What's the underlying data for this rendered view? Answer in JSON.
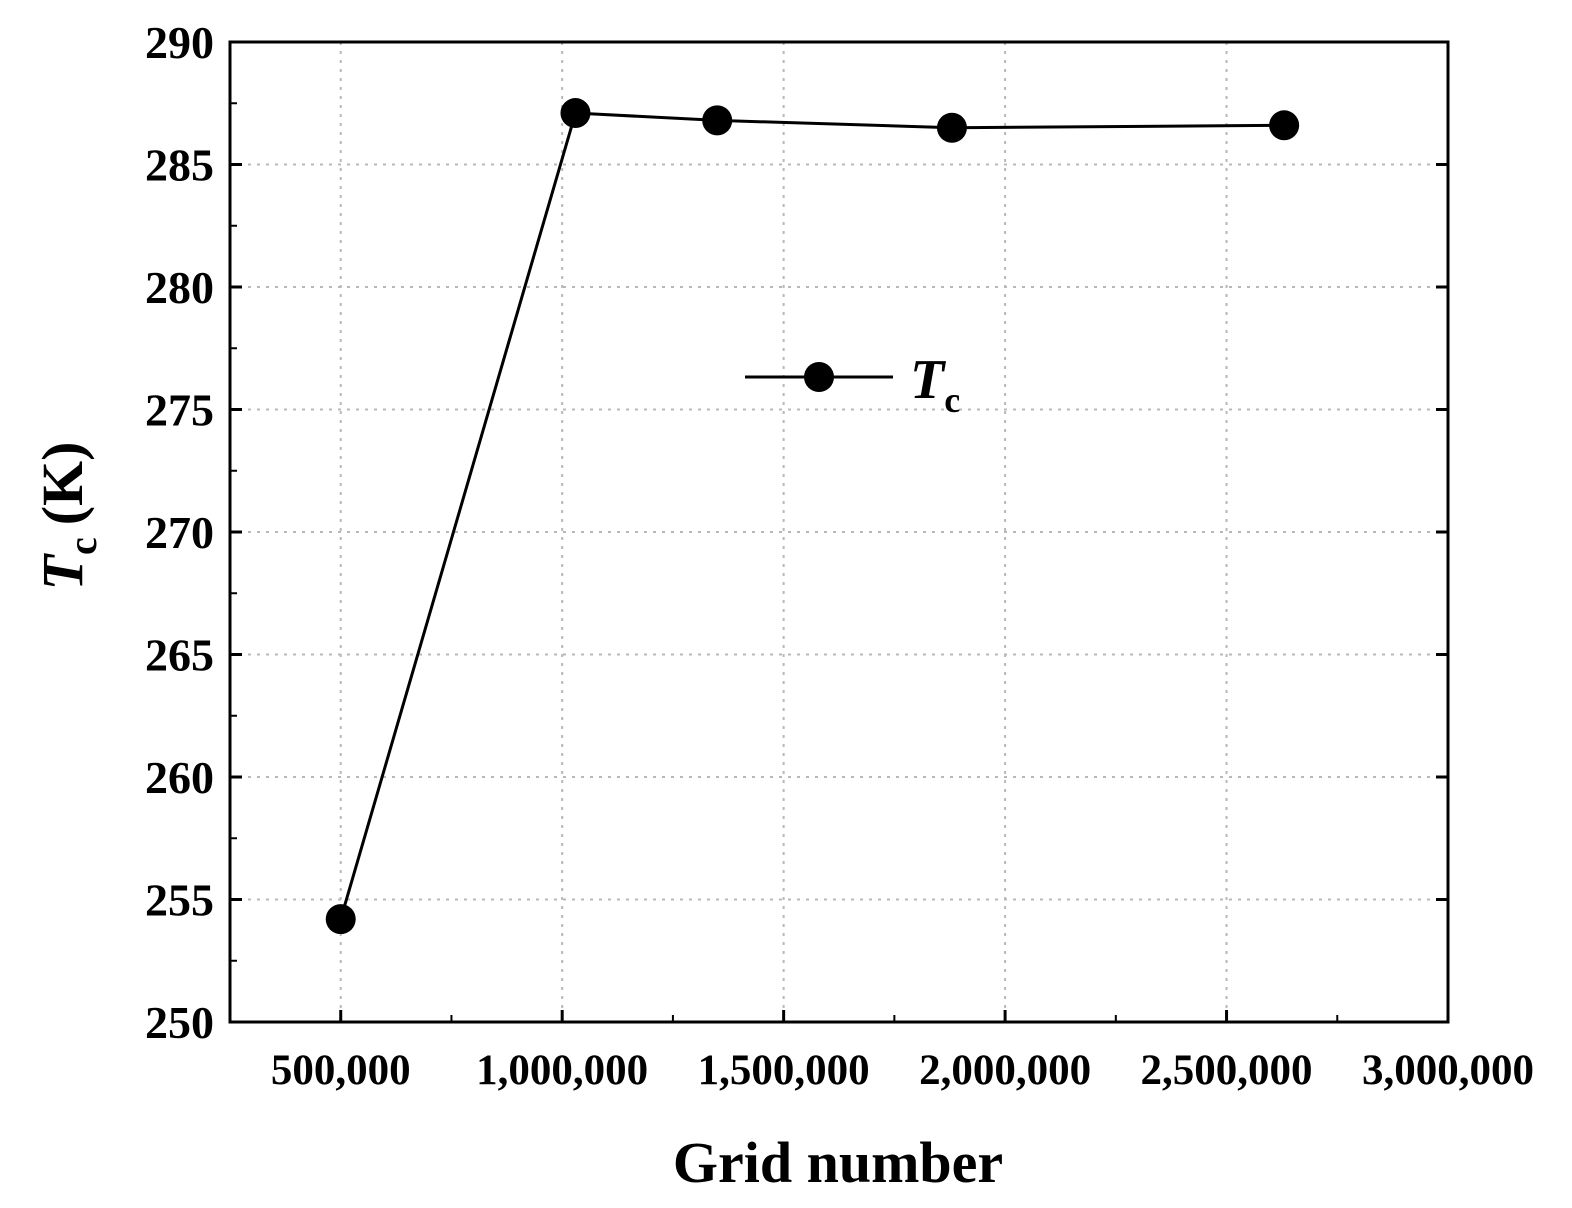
{
  "chart_data": {
    "type": "line",
    "xlabel": "Grid number",
    "ylabel_symbol": "T",
    "ylabel_subscript": "c",
    "ylabel_unit": "(K)",
    "xlim": [
      250000,
      3000000
    ],
    "ylim": [
      250,
      290
    ],
    "x_ticks": [
      500000,
      1000000,
      1500000,
      2000000,
      2500000,
      3000000
    ],
    "x_tick_labels": [
      "500,000",
      "1,000,000",
      "1,500,000",
      "2,000,000",
      "2,500,000",
      "3,000,000"
    ],
    "y_ticks": [
      250,
      255,
      260,
      265,
      270,
      275,
      280,
      285,
      290
    ],
    "y_tick_labels": [
      "250",
      "255",
      "260",
      "265",
      "270",
      "275",
      "280",
      "285",
      "290"
    ],
    "grid": true,
    "legend_position": "center",
    "series": [
      {
        "name_symbol": "T",
        "name_subscript": "c",
        "marker": "circle",
        "color": "#000000",
        "points": [
          {
            "x": 500000,
            "y": 254.2
          },
          {
            "x": 1030000,
            "y": 287.1
          },
          {
            "x": 1350000,
            "y": 286.8
          },
          {
            "x": 1880000,
            "y": 286.5
          },
          {
            "x": 2630000,
            "y": 286.6
          }
        ]
      }
    ]
  }
}
